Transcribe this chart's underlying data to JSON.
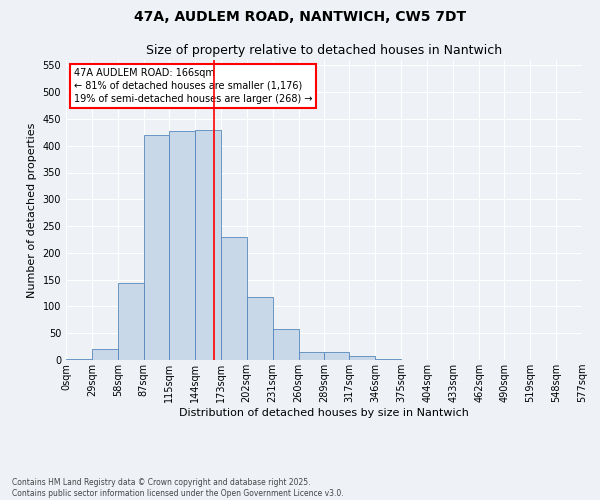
{
  "title1": "47A, AUDLEM ROAD, NANTWICH, CW5 7DT",
  "title2": "Size of property relative to detached houses in Nantwich",
  "xlabel": "Distribution of detached houses by size in Nantwich",
  "ylabel": "Number of detached properties",
  "bin_edges": [
    0,
    29,
    58,
    87,
    115,
    144,
    173,
    202,
    231,
    260,
    289,
    317,
    346,
    375,
    404,
    433,
    462,
    490,
    519,
    548,
    577
  ],
  "bar_heights": [
    2,
    20,
    143,
    420,
    428,
    430,
    230,
    118,
    58,
    15,
    15,
    7,
    2,
    0,
    0,
    0,
    0,
    0,
    0,
    0,
    2
  ],
  "bar_color": "#c8d8e8",
  "bar_edgecolor": "#5588bb",
  "vline_x": 166,
  "vline_color": "red",
  "ylim": [
    0,
    560
  ],
  "yticks": [
    0,
    50,
    100,
    150,
    200,
    250,
    300,
    350,
    400,
    450,
    500,
    550
  ],
  "xtick_labels": [
    "0sqm",
    "29sqm",
    "58sqm",
    "87sqm",
    "115sqm",
    "144sqm",
    "173sqm",
    "202sqm",
    "231sqm",
    "260sqm",
    "289sqm",
    "317sqm",
    "346sqm",
    "375sqm",
    "404sqm",
    "433sqm",
    "462sqm",
    "490sqm",
    "519sqm",
    "548sqm",
    "577sqm"
  ],
  "annotation_text": "47A AUDLEM ROAD: 166sqm\n← 81% of detached houses are smaller (1,176)\n19% of semi-detached houses are larger (268) →",
  "background_color": "#eef2f7",
  "footer_text": "Contains HM Land Registry data © Crown copyright and database right 2025.\nContains public sector information licensed under the Open Government Licence v3.0.",
  "grid_color": "#ffffff",
  "title_fontsize": 10,
  "subtitle_fontsize": 9,
  "ylabel_fontsize": 8,
  "xlabel_fontsize": 8,
  "tick_fontsize": 7,
  "annot_fontsize": 7,
  "footer_fontsize": 5.5
}
